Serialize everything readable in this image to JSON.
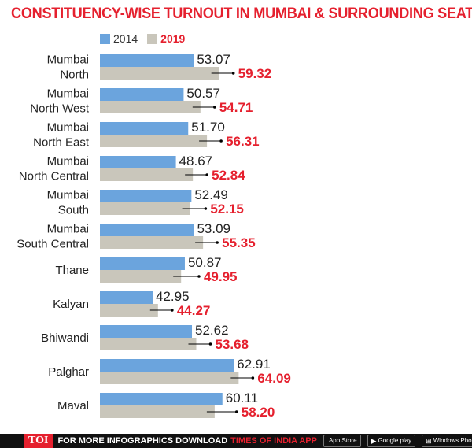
{
  "title": "CONSTITUENCY-WISE TURNOUT IN MUMBAI & SURROUNDING SEATS",
  "colors": {
    "s2014": "#6ba4dd",
    "s2019": "#c9c6bb",
    "accent": "#e5202e",
    "text": "#222222"
  },
  "chart_data": {
    "type": "bar",
    "orientation": "horizontal",
    "title": "CONSTITUENCY-WISE TURNOUT IN MUMBAI & SURROUNDING SEATS",
    "categories": [
      [
        "Mumbai",
        "North"
      ],
      [
        "Mumbai",
        "North West"
      ],
      [
        "Mumbai",
        "North East"
      ],
      [
        "Mumbai",
        "North Central"
      ],
      [
        "Mumbai",
        "South"
      ],
      [
        "Mumbai",
        "South Central"
      ],
      [
        "Thane"
      ],
      [
        "Kalyan"
      ],
      [
        "Bhiwandi"
      ],
      [
        "Palghar"
      ],
      [
        "Maval"
      ]
    ],
    "series": [
      {
        "name": "2014",
        "values": [
          "53.07",
          "50.57",
          "51.70",
          "48.67",
          "52.49",
          "53.09",
          "50.87",
          "42.95",
          "52.62",
          "62.91",
          "60.11"
        ]
      },
      {
        "name": "2019",
        "values": [
          "59.32",
          "54.71",
          "56.31",
          "52.84",
          "52.15",
          "55.35",
          "49.95",
          "44.27",
          "53.68",
          "64.09",
          "58.20"
        ]
      }
    ],
    "legend": "top-left",
    "grid": false
  },
  "footer": {
    "logo": "TOI",
    "text": "FOR MORE  INFOGRAPHICS DOWNLOAD",
    "brand": "TIMES OF INDIA  APP",
    "stores": [
      {
        "icon": "apple-icon",
        "label": "App Store"
      },
      {
        "icon": "play-icon",
        "label": "Google play"
      },
      {
        "icon": "windows-icon",
        "label": "Windows Phone"
      }
    ]
  }
}
